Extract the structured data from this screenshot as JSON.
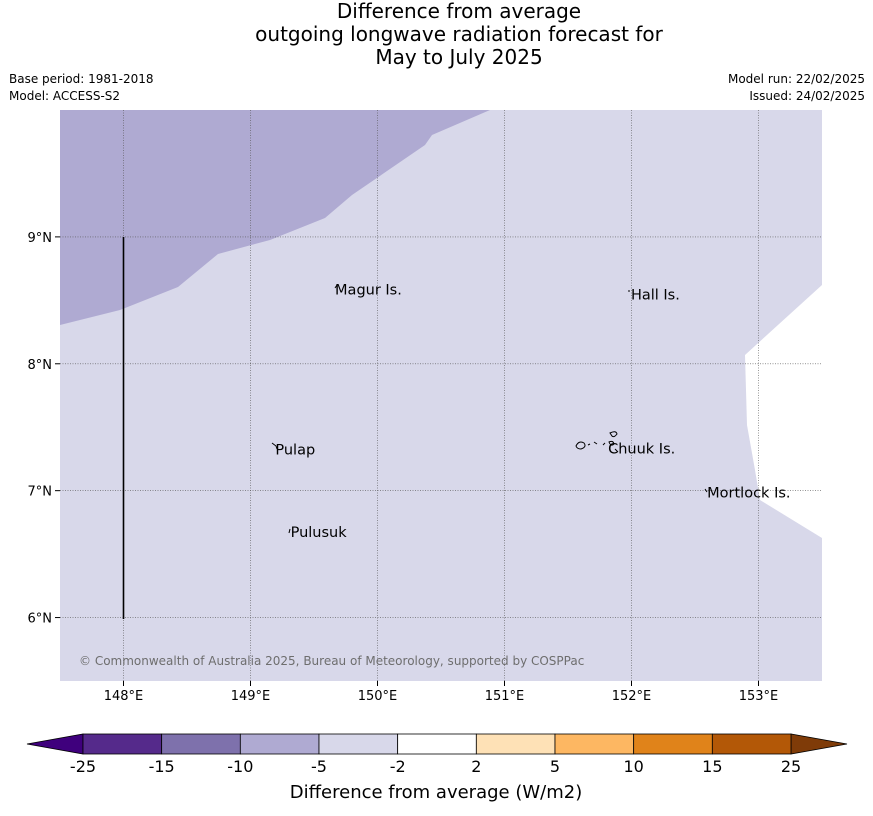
{
  "title": {
    "line1": "Difference from average",
    "line2": "outgoing longwave radiation forecast for",
    "line3": "May to July 2025"
  },
  "meta": {
    "base_period": "Base period: 1981-2018",
    "model": "Model: ACCESS-S2",
    "model_run": "Model run: 22/02/2025",
    "issued": "Issued: 24/02/2025"
  },
  "map": {
    "lon_range": [
      147.5,
      153.5
    ],
    "lat_range": [
      5.5,
      10.0
    ],
    "lon_ticks": [
      {
        "value": 148,
        "label": "148°E"
      },
      {
        "value": 149,
        "label": "149°E"
      },
      {
        "value": 150,
        "label": "150°E"
      },
      {
        "value": 151,
        "label": "151°E"
      },
      {
        "value": 152,
        "label": "152°E"
      },
      {
        "value": 153,
        "label": "153°E"
      }
    ],
    "lat_ticks": [
      {
        "value": 6,
        "label": "6°N"
      },
      {
        "value": 7,
        "label": "7°N"
      },
      {
        "value": 8,
        "label": "8°N"
      },
      {
        "value": 9,
        "label": "9°N"
      }
    ],
    "places": [
      {
        "name": "Magur Is.",
        "lon": 149.65,
        "lat": 8.6
      },
      {
        "name": "Hall Is.",
        "lon": 151.98,
        "lat": 8.56
      },
      {
        "name": "Pulap",
        "lon": 149.18,
        "lat": 7.34
      },
      {
        "name": "Chuuk Is.",
        "lon": 151.8,
        "lat": 7.35
      },
      {
        "name": "Mortlock Is.",
        "lon": 152.58,
        "lat": 7.0
      },
      {
        "name": "Pulusuk",
        "lon": 149.3,
        "lat": 6.69
      }
    ],
    "copyright": "© Commonwealth of Australia 2025, Bureau of Meteorology, supported by COSPPac"
  },
  "colorbar": {
    "title": "Difference from average (W/m2)",
    "labels": [
      "-25",
      "-15",
      "-10",
      "-5",
      "-2",
      "2",
      "5",
      "10",
      "15",
      "25"
    ],
    "colors": [
      "#552a8b",
      "#7e71ac",
      "#afaad2",
      "#d8d8ea",
      "#ffffff",
      "#fee1b6",
      "#fdb762",
      "#e0831a",
      "#b35807"
    ],
    "under_color": "#3f007d",
    "over_color": "#7f3b08"
  }
}
